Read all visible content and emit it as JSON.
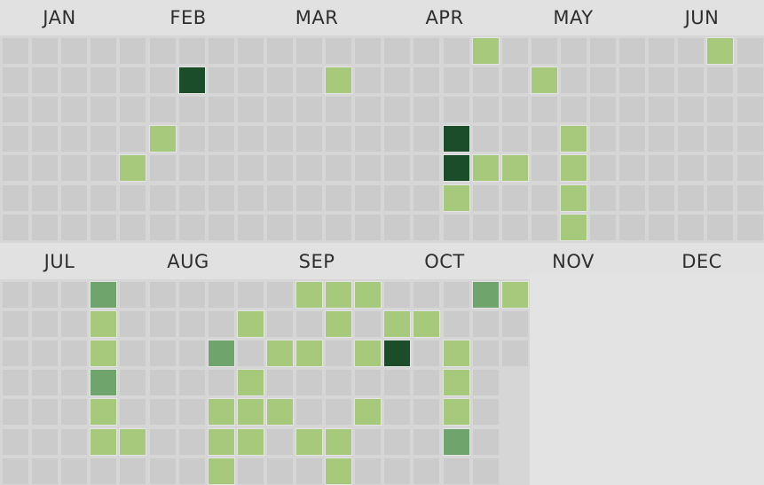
{
  "chart_data": {
    "type": "heatmap",
    "title": "",
    "months": [
      "JAN",
      "FEB",
      "MAR",
      "APR",
      "MAY",
      "JUN",
      "JUL",
      "AUG",
      "SEP",
      "OCT",
      "NOV",
      "DEC"
    ],
    "levels": [
      {
        "level": 0,
        "color": "#cbcbcb"
      },
      {
        "level": 1,
        "color": "#a7c97c"
      },
      {
        "level": 2,
        "color": "#6fa46c"
      },
      {
        "level": 3,
        "color": "#1c4d2b"
      }
    ],
    "halves": [
      {
        "name": "jan-jun",
        "months": [
          "JAN",
          "FEB",
          "MAR",
          "APR",
          "MAY",
          "JUN"
        ],
        "weeks": 26,
        "active_cells": [
          {
            "week": 16,
            "day": 0,
            "level": 1
          },
          {
            "week": 24,
            "day": 0,
            "level": 1
          },
          {
            "week": 6,
            "day": 1,
            "level": 3
          },
          {
            "week": 11,
            "day": 1,
            "level": 1
          },
          {
            "week": 18,
            "day": 1,
            "level": 1
          },
          {
            "week": 5,
            "day": 3,
            "level": 1
          },
          {
            "week": 15,
            "day": 3,
            "level": 3
          },
          {
            "week": 19,
            "day": 3,
            "level": 1
          },
          {
            "week": 4,
            "day": 4,
            "level": 1
          },
          {
            "week": 15,
            "day": 4,
            "level": 3
          },
          {
            "week": 16,
            "day": 4,
            "level": 1
          },
          {
            "week": 17,
            "day": 4,
            "level": 1
          },
          {
            "week": 19,
            "day": 4,
            "level": 1
          },
          {
            "week": 15,
            "day": 5,
            "level": 1
          },
          {
            "week": 19,
            "day": 5,
            "level": 1
          },
          {
            "week": 19,
            "day": 6,
            "level": 1
          }
        ]
      },
      {
        "name": "jul-dec",
        "months": [
          "JUL",
          "AUG",
          "SEP",
          "OCT",
          "NOV",
          "DEC"
        ],
        "weeks": 18,
        "active_cells": [
          {
            "week": 3,
            "day": 0,
            "level": 2
          },
          {
            "week": 10,
            "day": 0,
            "level": 1
          },
          {
            "week": 11,
            "day": 0,
            "level": 1
          },
          {
            "week": 12,
            "day": 0,
            "level": 1
          },
          {
            "week": 16,
            "day": 0,
            "level": 2
          },
          {
            "week": 17,
            "day": 0,
            "level": 1
          },
          {
            "week": 3,
            "day": 1,
            "level": 1
          },
          {
            "week": 8,
            "day": 1,
            "level": 1
          },
          {
            "week": 11,
            "day": 1,
            "level": 1
          },
          {
            "week": 13,
            "day": 1,
            "level": 1
          },
          {
            "week": 14,
            "day": 1,
            "level": 1
          },
          {
            "week": 3,
            "day": 2,
            "level": 1
          },
          {
            "week": 7,
            "day": 2,
            "level": 2
          },
          {
            "week": 9,
            "day": 2,
            "level": 1
          },
          {
            "week": 10,
            "day": 2,
            "level": 1
          },
          {
            "week": 12,
            "day": 2,
            "level": 1
          },
          {
            "week": 13,
            "day": 2,
            "level": 3
          },
          {
            "week": 15,
            "day": 2,
            "level": 1
          },
          {
            "week": 3,
            "day": 3,
            "level": 2
          },
          {
            "week": 8,
            "day": 3,
            "level": 1
          },
          {
            "week": 15,
            "day": 3,
            "level": 1
          },
          {
            "week": 3,
            "day": 4,
            "level": 1
          },
          {
            "week": 7,
            "day": 4,
            "level": 1
          },
          {
            "week": 8,
            "day": 4,
            "level": 1
          },
          {
            "week": 9,
            "day": 4,
            "level": 1
          },
          {
            "week": 12,
            "day": 4,
            "level": 1
          },
          {
            "week": 15,
            "day": 4,
            "level": 1
          },
          {
            "week": 3,
            "day": 5,
            "level": 1
          },
          {
            "week": 4,
            "day": 5,
            "level": 1
          },
          {
            "week": 7,
            "day": 5,
            "level": 1
          },
          {
            "week": 8,
            "day": 5,
            "level": 1
          },
          {
            "week": 10,
            "day": 5,
            "level": 1
          },
          {
            "week": 11,
            "day": 5,
            "level": 1
          },
          {
            "week": 15,
            "day": 5,
            "level": 2
          },
          {
            "week": 7,
            "day": 6,
            "level": 1
          },
          {
            "week": 11,
            "day": 6,
            "level": 1
          }
        ]
      }
    ]
  }
}
